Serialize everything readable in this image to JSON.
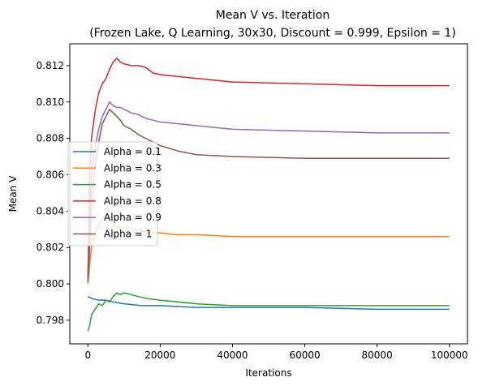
{
  "chart_data": {
    "type": "line",
    "title": "Mean V vs. Iteration",
    "subtitle": "(Frozen Lake, Q Learning, 30x30, Discount = 0.999, Epsilon = 1)",
    "xlabel": "Iterations",
    "ylabel": "Mean V",
    "xlim": [
      -5000,
      105000
    ],
    "ylim": [
      0.7967,
      0.8132
    ],
    "xticks": [
      0,
      20000,
      40000,
      60000,
      80000,
      100000
    ],
    "xtick_labels": [
      "0",
      "20000",
      "40000",
      "60000",
      "80000",
      "100000"
    ],
    "yticks": [
      0.798,
      0.8,
      0.802,
      0.804,
      0.806,
      0.808,
      0.81,
      0.812
    ],
    "ytick_labels": [
      "0.798",
      "0.800",
      "0.802",
      "0.804",
      "0.806",
      "0.808",
      "0.810",
      "0.812"
    ],
    "grid": false,
    "legend_position": "left",
    "series": [
      {
        "name": "Alpha = 0.1",
        "color": "#1f77b4",
        "x": [
          0,
          1000,
          3000,
          5000,
          7000,
          10000,
          15000,
          20000,
          30000,
          40000,
          60000,
          80000,
          100000
        ],
        "values": [
          0.7993,
          0.7992,
          0.7991,
          0.7991,
          0.799,
          0.7989,
          0.7988,
          0.7988,
          0.7987,
          0.7987,
          0.7987,
          0.7986,
          0.7986
        ]
      },
      {
        "name": "Alpha = 0.3",
        "color": "#ff7f0e",
        "x": [
          0,
          500,
          1000,
          2000,
          3000,
          4000,
          5000,
          6000,
          7000,
          8000,
          10000,
          12000,
          15000,
          20000,
          25000,
          30000,
          40000,
          60000,
          80000,
          100000
        ],
        "values": [
          0.8,
          0.801,
          0.802,
          0.8028,
          0.8032,
          0.8036,
          0.8038,
          0.8036,
          0.8033,
          0.8031,
          0.8031,
          0.803,
          0.8029,
          0.8028,
          0.8027,
          0.8027,
          0.8026,
          0.8026,
          0.8026,
          0.8026
        ]
      },
      {
        "name": "Alpha = 0.5",
        "color": "#2ca02c",
        "x": [
          0,
          500,
          1000,
          2000,
          3000,
          4000,
          5000,
          6000,
          7000,
          8000,
          9000,
          10000,
          12000,
          14000,
          16000,
          20000,
          25000,
          30000,
          40000,
          60000,
          80000,
          100000
        ],
        "values": [
          0.7974,
          0.7977,
          0.7983,
          0.7986,
          0.7989,
          0.7988,
          0.7991,
          0.799,
          0.7993,
          0.7995,
          0.7994,
          0.7995,
          0.7994,
          0.7993,
          0.7992,
          0.7991,
          0.799,
          0.7989,
          0.7988,
          0.7988,
          0.7988,
          0.7988
        ]
      },
      {
        "name": "Alpha = 0.8",
        "color": "#d62728",
        "x": [
          0,
          500,
          1000,
          2000,
          3000,
          4000,
          5000,
          6000,
          7000,
          8000,
          9000,
          10000,
          12000,
          14000,
          16000,
          18000,
          20000,
          25000,
          30000,
          40000,
          60000,
          80000,
          100000
        ],
        "values": [
          0.8003,
          0.806,
          0.808,
          0.8095,
          0.8105,
          0.811,
          0.8113,
          0.8118,
          0.8122,
          0.8124,
          0.8122,
          0.8121,
          0.812,
          0.812,
          0.8119,
          0.8116,
          0.8115,
          0.8114,
          0.8113,
          0.8111,
          0.811,
          0.8109,
          0.8109
        ]
      },
      {
        "name": "Alpha = 0.9",
        "color": "#9467bd",
        "x": [
          0,
          500,
          1000,
          2000,
          3000,
          4000,
          5000,
          6000,
          7000,
          8000,
          9000,
          10000,
          12000,
          14000,
          16000,
          20000,
          25000,
          30000,
          40000,
          60000,
          80000,
          100000
        ],
        "values": [
          0.8005,
          0.804,
          0.806,
          0.8075,
          0.8085,
          0.8092,
          0.8096,
          0.81,
          0.8098,
          0.8097,
          0.8097,
          0.8096,
          0.8094,
          0.8093,
          0.8091,
          0.8089,
          0.8088,
          0.8087,
          0.8085,
          0.8084,
          0.8083,
          0.8083
        ]
      },
      {
        "name": "Alpha = 1",
        "color": "#8c564b",
        "x": [
          0,
          500,
          1000,
          2000,
          3000,
          4000,
          5000,
          6000,
          7000,
          8000,
          9000,
          10000,
          12000,
          14000,
          16000,
          18000,
          20000,
          25000,
          30000,
          40000,
          60000,
          80000,
          100000
        ],
        "values": [
          0.8001,
          0.802,
          0.8045,
          0.8065,
          0.8078,
          0.8088,
          0.8092,
          0.8096,
          0.8094,
          0.8092,
          0.809,
          0.8087,
          0.8085,
          0.8082,
          0.808,
          0.8078,
          0.8076,
          0.8073,
          0.8071,
          0.807,
          0.8069,
          0.8069,
          0.8069
        ]
      }
    ]
  }
}
